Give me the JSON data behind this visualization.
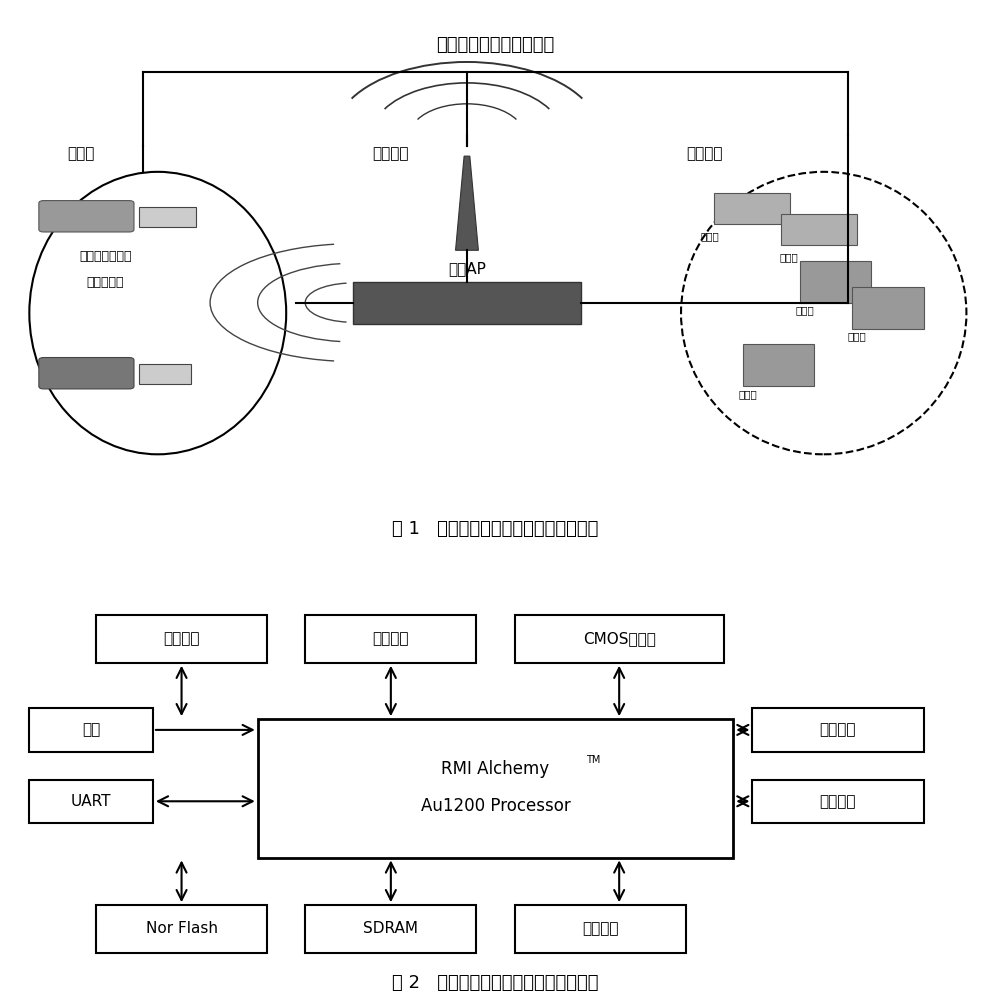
{
  "fig1_title": "无线车载多媒体处理系统",
  "fig1_caption": "图 1   无线车载媒体处理系统网络架构图",
  "fig2_caption": "图 2   无线车载无线媒体处理器系统框图",
  "bg_color": "#ffffff",
  "line_color": "#000000",
  "text_color": "#000000"
}
